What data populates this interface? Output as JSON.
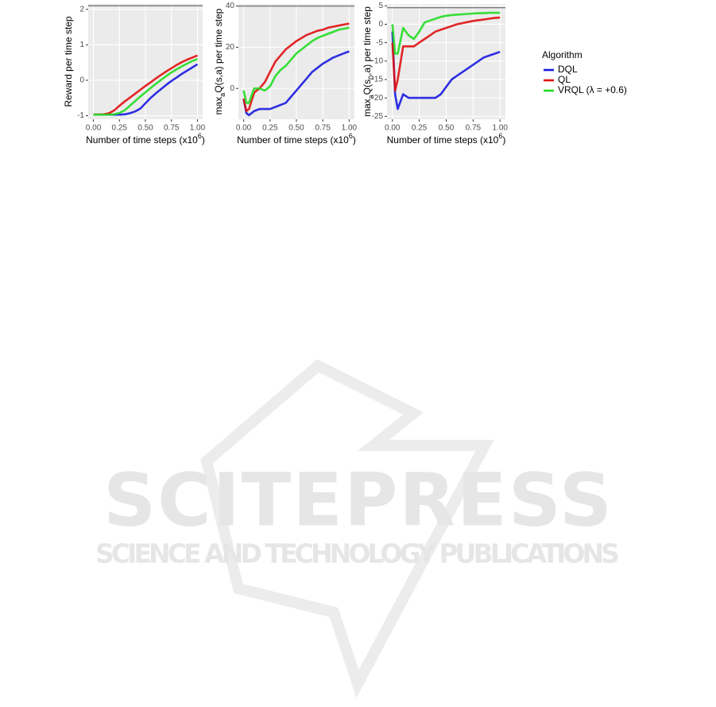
{
  "chart_data": [
    {
      "type": "line",
      "xlabel": [
        {
          "text": "Number of time steps (x10"
        },
        {
          "text": "6",
          "shift": "super"
        },
        {
          "text": ")"
        }
      ],
      "ylabel": [
        {
          "text": "Reward per time step"
        }
      ],
      "x": [
        0,
        0.025,
        0.05,
        0.1,
        0.15,
        0.2,
        0.25,
        0.3,
        0.35,
        0.4,
        0.45,
        0.5,
        0.55,
        0.6,
        0.65,
        0.7,
        0.75,
        0.8,
        0.85,
        0.9,
        0.95,
        1
      ],
      "xlim": [
        -0.05,
        1.05
      ],
      "xticks": [
        {
          "value": 0,
          "label": "0.00"
        },
        {
          "value": 0.25,
          "label": "0.25"
        },
        {
          "value": 0.5,
          "label": "0.50"
        },
        {
          "value": 0.75,
          "label": "0.75"
        },
        {
          "value": 1,
          "label": "1.00"
        }
      ],
      "ylim": [
        -1.1,
        2.15
      ],
      "yticks": [
        -1,
        0,
        1,
        2
      ],
      "hline": 2.1,
      "grid": true,
      "series": [
        {
          "name": "DQL",
          "color": "#1a1ae0",
          "values": [
            -0.97,
            -0.97,
            -0.97,
            -0.97,
            -0.97,
            -0.97,
            -0.97,
            -0.96,
            -0.93,
            -0.88,
            -0.8,
            -0.65,
            -0.5,
            -0.37,
            -0.25,
            -0.13,
            -0.02,
            0.08,
            0.18,
            0.27,
            0.36,
            0.45
          ]
        },
        {
          "name": "QL",
          "color": "#e01010",
          "values": [
            -0.97,
            -0.97,
            -0.97,
            -0.96,
            -0.93,
            -0.85,
            -0.72,
            -0.6,
            -0.49,
            -0.38,
            -0.27,
            -0.16,
            -0.06,
            0.05,
            0.15,
            0.25,
            0.34,
            0.43,
            0.51,
            0.58,
            0.64,
            0.7
          ]
        },
        {
          "name": "VRQL (λ = +0.6)",
          "color": "#22dd22",
          "values": [
            -0.97,
            -0.97,
            -0.97,
            -0.97,
            -0.97,
            -0.96,
            -0.92,
            -0.85,
            -0.72,
            -0.59,
            -0.46,
            -0.34,
            -0.22,
            -0.1,
            0.01,
            0.12,
            0.22,
            0.31,
            0.39,
            0.47,
            0.54,
            0.6
          ]
        }
      ]
    },
    {
      "type": "line",
      "xlabel": [
        {
          "text": "Number of time steps (x10"
        },
        {
          "text": "6",
          "shift": "super"
        },
        {
          "text": ")"
        }
      ],
      "ylabel": [
        {
          "text": "max"
        },
        {
          "text": "a",
          "shift": "sub"
        },
        {
          "text": "Q(s,a) per time step"
        }
      ],
      "x": [
        0,
        0.025,
        0.05,
        0.1,
        0.15,
        0.2,
        0.25,
        0.3,
        0.35,
        0.4,
        0.45,
        0.5,
        0.55,
        0.6,
        0.65,
        0.7,
        0.75,
        0.8,
        0.85,
        0.9,
        0.95,
        1
      ],
      "xlim": [
        -0.05,
        1.05
      ],
      "xticks": [
        {
          "value": 0,
          "label": "0.00"
        },
        {
          "value": 0.25,
          "label": "0.25"
        },
        {
          "value": 0.5,
          "label": "0.50"
        },
        {
          "value": 0.75,
          "label": "0.75"
        },
        {
          "value": 1,
          "label": "1.00"
        }
      ],
      "ylim": [
        -15,
        41
      ],
      "yticks": [
        0,
        20,
        40
      ],
      "hline": 40,
      "grid": true,
      "series": [
        {
          "name": "DQL",
          "color": "#1a1ae0",
          "values": [
            -5,
            -12,
            -13,
            -11,
            -10,
            -10,
            -10,
            -9,
            -8,
            -7,
            -4,
            -1,
            2,
            5,
            8,
            10,
            12,
            13.5,
            15,
            16,
            17,
            18
          ]
        },
        {
          "name": "QL",
          "color": "#e01010",
          "values": [
            -5,
            -11,
            -10,
            -2,
            0,
            3,
            8,
            13,
            16,
            19,
            21,
            23,
            24.5,
            26,
            27,
            28,
            28.5,
            29.5,
            30,
            30.5,
            31,
            31.5
          ]
        },
        {
          "name": "VRQL (λ = +0.6)",
          "color": "#22dd22",
          "values": [
            -1,
            -7,
            -7,
            0,
            0,
            -1,
            1,
            6,
            9,
            11,
            14,
            17,
            19,
            21,
            23,
            24.5,
            25.5,
            26.5,
            27.5,
            28.5,
            29,
            29.5
          ]
        }
      ]
    },
    {
      "type": "line",
      "xlabel": [
        {
          "text": "Number of time steps (x10"
        },
        {
          "text": "6",
          "shift": "super"
        },
        {
          "text": ")"
        }
      ],
      "ylabel": [
        {
          "text": "max"
        },
        {
          "text": "a",
          "shift": "sub"
        },
        {
          "text": "Q(s"
        },
        {
          "text": "0",
          "shift": "sub"
        },
        {
          "text": ",a) per time step"
        }
      ],
      "x": [
        0,
        0.025,
        0.05,
        0.1,
        0.15,
        0.2,
        0.25,
        0.3,
        0.35,
        0.4,
        0.45,
        0.5,
        0.55,
        0.6,
        0.65,
        0.7,
        0.75,
        0.8,
        0.85,
        0.9,
        0.95,
        1
      ],
      "xlim": [
        -0.05,
        1.05
      ],
      "xticks": [
        {
          "value": 0,
          "label": "0.00"
        },
        {
          "value": 0.25,
          "label": "0.25"
        },
        {
          "value": 0.5,
          "label": "0.50"
        },
        {
          "value": 0.75,
          "label": "0.75"
        },
        {
          "value": 1,
          "label": "1.00"
        }
      ],
      "ylim": [
        -25.8,
        5.5
      ],
      "yticks": [
        5,
        0,
        -5,
        -10,
        -15,
        -20,
        -25
      ],
      "hline": 4.5,
      "grid": true,
      "legend": "right",
      "legend_title": "Algorithm",
      "series": [
        {
          "name": "DQL",
          "color": "#1a1ae0",
          "values": [
            -2,
            -19,
            -23,
            -19,
            -20,
            -20,
            -20,
            -20,
            -20,
            -20,
            -19,
            -17,
            -15,
            -14,
            -13,
            -12,
            -11,
            -10,
            -9,
            -8.5,
            -8,
            -7.5
          ]
        },
        {
          "name": "QL",
          "color": "#e01010",
          "values": [
            -5,
            -18,
            -15,
            -6,
            -6,
            -6,
            -5,
            -4,
            -3,
            -2,
            -1.5,
            -1,
            -0.5,
            0,
            0.3,
            0.6,
            0.9,
            1.1,
            1.3,
            1.5,
            1.7,
            1.8
          ]
        },
        {
          "name": "VRQL (λ = +0.6)",
          "color": "#22dd22",
          "values": [
            0,
            -8,
            -8,
            -1,
            -3,
            -4,
            -2,
            0.5,
            1,
            1.5,
            2,
            2.3,
            2.5,
            2.6,
            2.7,
            2.8,
            2.9,
            3,
            3,
            3.1,
            3.1,
            3.1
          ]
        }
      ]
    }
  ],
  "watermark": {
    "title": "SCITEPRESS",
    "subtitle": "SCIENCE AND TECHNOLOGY PUBLICATIONS"
  }
}
